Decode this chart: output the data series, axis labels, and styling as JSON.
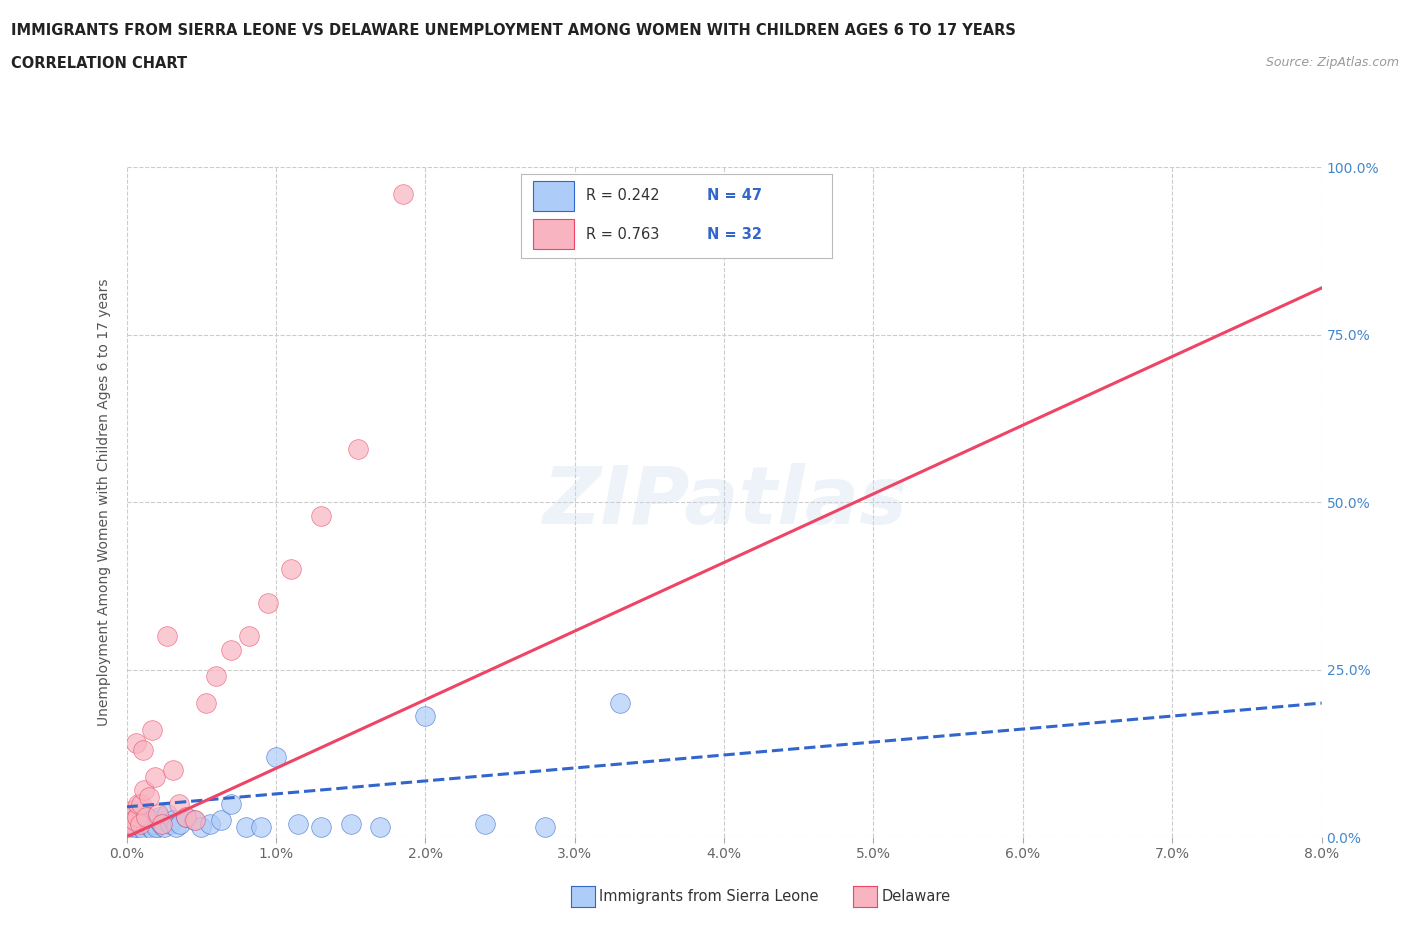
{
  "title_line1": "IMMIGRANTS FROM SIERRA LEONE VS DELAWARE UNEMPLOYMENT AMONG WOMEN WITH CHILDREN AGES 6 TO 17 YEARS",
  "title_line2": "CORRELATION CHART",
  "source_text": "Source: ZipAtlas.com",
  "xlim": [
    0.0,
    0.08
  ],
  "ylim": [
    0.0,
    1.0
  ],
  "ylabel": "Unemployment Among Women with Children Ages 6 to 17 years",
  "watermark": "ZIPatlas",
  "blue_R": 0.242,
  "blue_N": 47,
  "pink_R": 0.763,
  "pink_N": 32,
  "blue_color": "#aeccf8",
  "pink_color": "#f8b4c0",
  "blue_line_color": "#3366cc",
  "pink_line_color": "#ee4466",
  "blue_scatter_x": [
    0.0,
    0.0002,
    0.0003,
    0.0004,
    0.0005,
    0.0005,
    0.0006,
    0.0007,
    0.0008,
    0.0009,
    0.001,
    0.0011,
    0.0012,
    0.0013,
    0.0014,
    0.0015,
    0.0016,
    0.0017,
    0.0018,
    0.0019,
    0.002,
    0.0021,
    0.0022,
    0.0023,
    0.0025,
    0.0027,
    0.0029,
    0.0031,
    0.0033,
    0.0036,
    0.004,
    0.0045,
    0.005,
    0.0056,
    0.0063,
    0.007,
    0.008,
    0.009,
    0.01,
    0.0115,
    0.013,
    0.015,
    0.017,
    0.02,
    0.024,
    0.028,
    0.033
  ],
  "blue_scatter_y": [
    0.02,
    0.015,
    0.025,
    0.02,
    0.01,
    0.03,
    0.015,
    0.02,
    0.025,
    0.035,
    0.015,
    0.02,
    0.01,
    0.025,
    0.03,
    0.02,
    0.015,
    0.025,
    0.01,
    0.02,
    0.015,
    0.025,
    0.03,
    0.02,
    0.015,
    0.035,
    0.02,
    0.025,
    0.015,
    0.02,
    0.03,
    0.025,
    0.015,
    0.02,
    0.025,
    0.05,
    0.015,
    0.015,
    0.12,
    0.02,
    0.015,
    0.02,
    0.015,
    0.18,
    0.02,
    0.015,
    0.2
  ],
  "pink_scatter_x": [
    0.0,
    0.0002,
    0.0003,
    0.0004,
    0.0005,
    0.0006,
    0.0007,
    0.0008,
    0.0009,
    0.001,
    0.0011,
    0.0012,
    0.0013,
    0.0015,
    0.0017,
    0.0019,
    0.0021,
    0.0024,
    0.0027,
    0.0031,
    0.0035,
    0.004,
    0.0046,
    0.0053,
    0.006,
    0.007,
    0.0082,
    0.0095,
    0.011,
    0.013,
    0.0155,
    0.0185
  ],
  "pink_scatter_y": [
    0.02,
    0.03,
    0.02,
    0.04,
    0.025,
    0.14,
    0.03,
    0.05,
    0.02,
    0.05,
    0.13,
    0.07,
    0.03,
    0.06,
    0.16,
    0.09,
    0.035,
    0.02,
    0.3,
    0.1,
    0.05,
    0.03,
    0.025,
    0.2,
    0.24,
    0.28,
    0.3,
    0.35,
    0.4,
    0.48,
    0.58,
    0.96
  ],
  "blue_trend_x": [
    0.0,
    0.08
  ],
  "blue_trend_y": [
    0.045,
    0.2
  ],
  "pink_trend_x": [
    0.0,
    0.08
  ],
  "pink_trend_y": [
    0.0,
    0.82
  ],
  "legend_label_blue": "Immigrants from Sierra Leone",
  "legend_label_pink": "Delaware",
  "grid_color": "#cccccc",
  "bg_color": "#ffffff",
  "title_color": "#222222",
  "legend_text_color": "#3366cc"
}
